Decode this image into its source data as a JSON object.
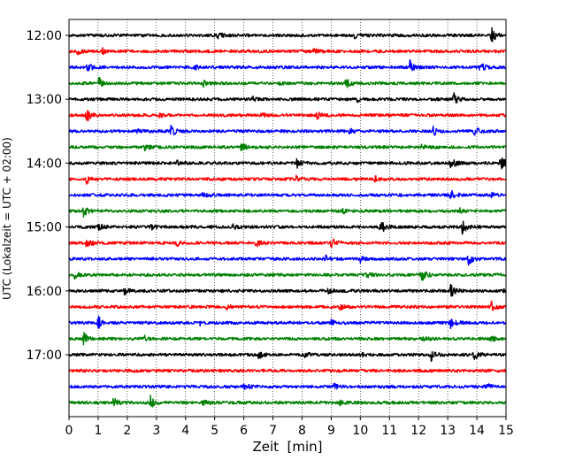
{
  "chart_data": {
    "type": "line",
    "subtype": "helicorder-seismogram",
    "xlabel": "Zeit  [min]",
    "ylabel": "UTC (Lokalzeit = UTC + 02:00)",
    "xlim": [
      0,
      15
    ],
    "x_ticks": [
      "0",
      "1",
      "2",
      "3",
      "4",
      "5",
      "6",
      "7",
      "8",
      "9",
      "10",
      "11",
      "12",
      "13",
      "14",
      "15"
    ],
    "y_ticks": [
      "12:00",
      "13:00",
      "14:00",
      "15:00",
      "16:00",
      "17:00"
    ],
    "grid": "vertical dotted at each minute",
    "trace_interval_minutes": 15,
    "trace_colors": [
      "#000000",
      "#ff0000",
      "#0000ff",
      "#008000"
    ],
    "traces": [
      {
        "start": "12:00",
        "color": "#000000",
        "events": [
          [
            14.5,
            1.0
          ],
          [
            5.1,
            0.35
          ],
          [
            9.8,
            0.3
          ]
        ]
      },
      {
        "start": "12:15",
        "color": "#ff0000",
        "events": [
          [
            1.1,
            0.45
          ],
          [
            8.4,
            0.35
          ],
          [
            0.3,
            0.3
          ]
        ]
      },
      {
        "start": "12:30",
        "color": "#0000ff",
        "events": [
          [
            0.6,
            0.9
          ],
          [
            11.7,
            0.8
          ],
          [
            14.1,
            0.7
          ],
          [
            4.3,
            0.25
          ]
        ]
      },
      {
        "start": "12:45",
        "color": "#008000",
        "events": [
          [
            1.0,
            0.85
          ],
          [
            9.5,
            0.6
          ],
          [
            4.6,
            0.35
          ],
          [
            7.2,
            0.2
          ]
        ]
      },
      {
        "start": "13:00",
        "color": "#000000",
        "events": [
          [
            13.2,
            0.85
          ],
          [
            9.9,
            0.3
          ],
          [
            6.3,
            0.25
          ]
        ]
      },
      {
        "start": "13:15",
        "color": "#ff0000",
        "events": [
          [
            0.6,
            0.9
          ],
          [
            8.5,
            0.45
          ],
          [
            6.6,
            0.3
          ],
          [
            3.1,
            0.25
          ]
        ]
      },
      {
        "start": "13:30",
        "color": "#0000ff",
        "events": [
          [
            3.5,
            1.0
          ],
          [
            12.5,
            0.6
          ],
          [
            13.9,
            0.7
          ],
          [
            9.6,
            0.35
          ],
          [
            2.3,
            0.3
          ]
        ]
      },
      {
        "start": "13:45",
        "color": "#008000",
        "events": [
          [
            5.9,
            0.6
          ],
          [
            2.6,
            0.35
          ],
          [
            12.1,
            0.3
          ]
        ]
      },
      {
        "start": "14:00",
        "color": "#000000",
        "events": [
          [
            7.8,
            0.65
          ],
          [
            13.1,
            0.8
          ],
          [
            14.8,
            0.95
          ],
          [
            3.7,
            0.3
          ]
        ]
      },
      {
        "start": "14:15",
        "color": "#ff0000",
        "events": [
          [
            0.6,
            0.5
          ],
          [
            7.8,
            0.35
          ],
          [
            10.5,
            0.3
          ]
        ]
      },
      {
        "start": "14:30",
        "color": "#0000ff",
        "events": [
          [
            13.1,
            0.7
          ],
          [
            4.6,
            0.35
          ],
          [
            14.5,
            0.4
          ]
        ]
      },
      {
        "start": "14:45",
        "color": "#008000",
        "events": [
          [
            0.5,
            0.7
          ],
          [
            13.4,
            0.45
          ],
          [
            9.4,
            0.25
          ]
        ]
      },
      {
        "start": "15:00",
        "color": "#000000",
        "events": [
          [
            10.7,
            0.9
          ],
          [
            13.5,
            0.85
          ],
          [
            1.0,
            0.45
          ],
          [
            2.8,
            0.35
          ],
          [
            5.6,
            0.3
          ]
        ]
      },
      {
        "start": "15:15",
        "color": "#ff0000",
        "events": [
          [
            0.6,
            0.7
          ],
          [
            9.0,
            0.8
          ],
          [
            6.4,
            0.55
          ],
          [
            3.7,
            0.35
          ]
        ]
      },
      {
        "start": "15:30",
        "color": "#0000ff",
        "events": [
          [
            13.7,
            0.8
          ],
          [
            8.8,
            0.4
          ],
          [
            10.0,
            0.35
          ]
        ]
      },
      {
        "start": "15:45",
        "color": "#008000",
        "events": [
          [
            0.2,
            0.7
          ],
          [
            12.1,
            0.75
          ],
          [
            10.2,
            0.4
          ]
        ]
      },
      {
        "start": "16:00",
        "color": "#000000",
        "events": [
          [
            13.1,
            0.8
          ],
          [
            14.9,
            0.95
          ],
          [
            1.9,
            0.4
          ],
          [
            8.9,
            0.35
          ]
        ]
      },
      {
        "start": "16:15",
        "color": "#ff0000",
        "events": [
          [
            14.5,
            0.6
          ],
          [
            9.3,
            0.35
          ],
          [
            5.4,
            0.3
          ]
        ]
      },
      {
        "start": "16:30",
        "color": "#0000ff",
        "events": [
          [
            1.0,
            0.8
          ],
          [
            13.1,
            0.7
          ],
          [
            9.0,
            0.35
          ],
          [
            4.5,
            0.3
          ]
        ]
      },
      {
        "start": "16:45",
        "color": "#008000",
        "events": [
          [
            0.5,
            0.75
          ],
          [
            12.1,
            0.4
          ],
          [
            2.6,
            0.35
          ],
          [
            14.5,
            0.3
          ]
        ]
      },
      {
        "start": "17:00",
        "color": "#000000",
        "events": [
          [
            12.4,
            0.9
          ],
          [
            13.9,
            0.85
          ],
          [
            6.5,
            0.5
          ],
          [
            8.1,
            0.35
          ],
          [
            10.0,
            0.3
          ]
        ]
      },
      {
        "start": "17:15",
        "color": "#ff0000",
        "events": []
      },
      {
        "start": "17:30",
        "color": "#0000ff",
        "events": [
          [
            6.0,
            0.45
          ],
          [
            14.3,
            0.5
          ],
          [
            9.1,
            0.3
          ]
        ]
      },
      {
        "start": "17:45",
        "color": "#008000",
        "events": [
          [
            1.5,
            0.8
          ],
          [
            2.8,
            0.75
          ],
          [
            4.6,
            0.35
          ],
          [
            9.3,
            0.3
          ]
        ]
      }
    ]
  }
}
